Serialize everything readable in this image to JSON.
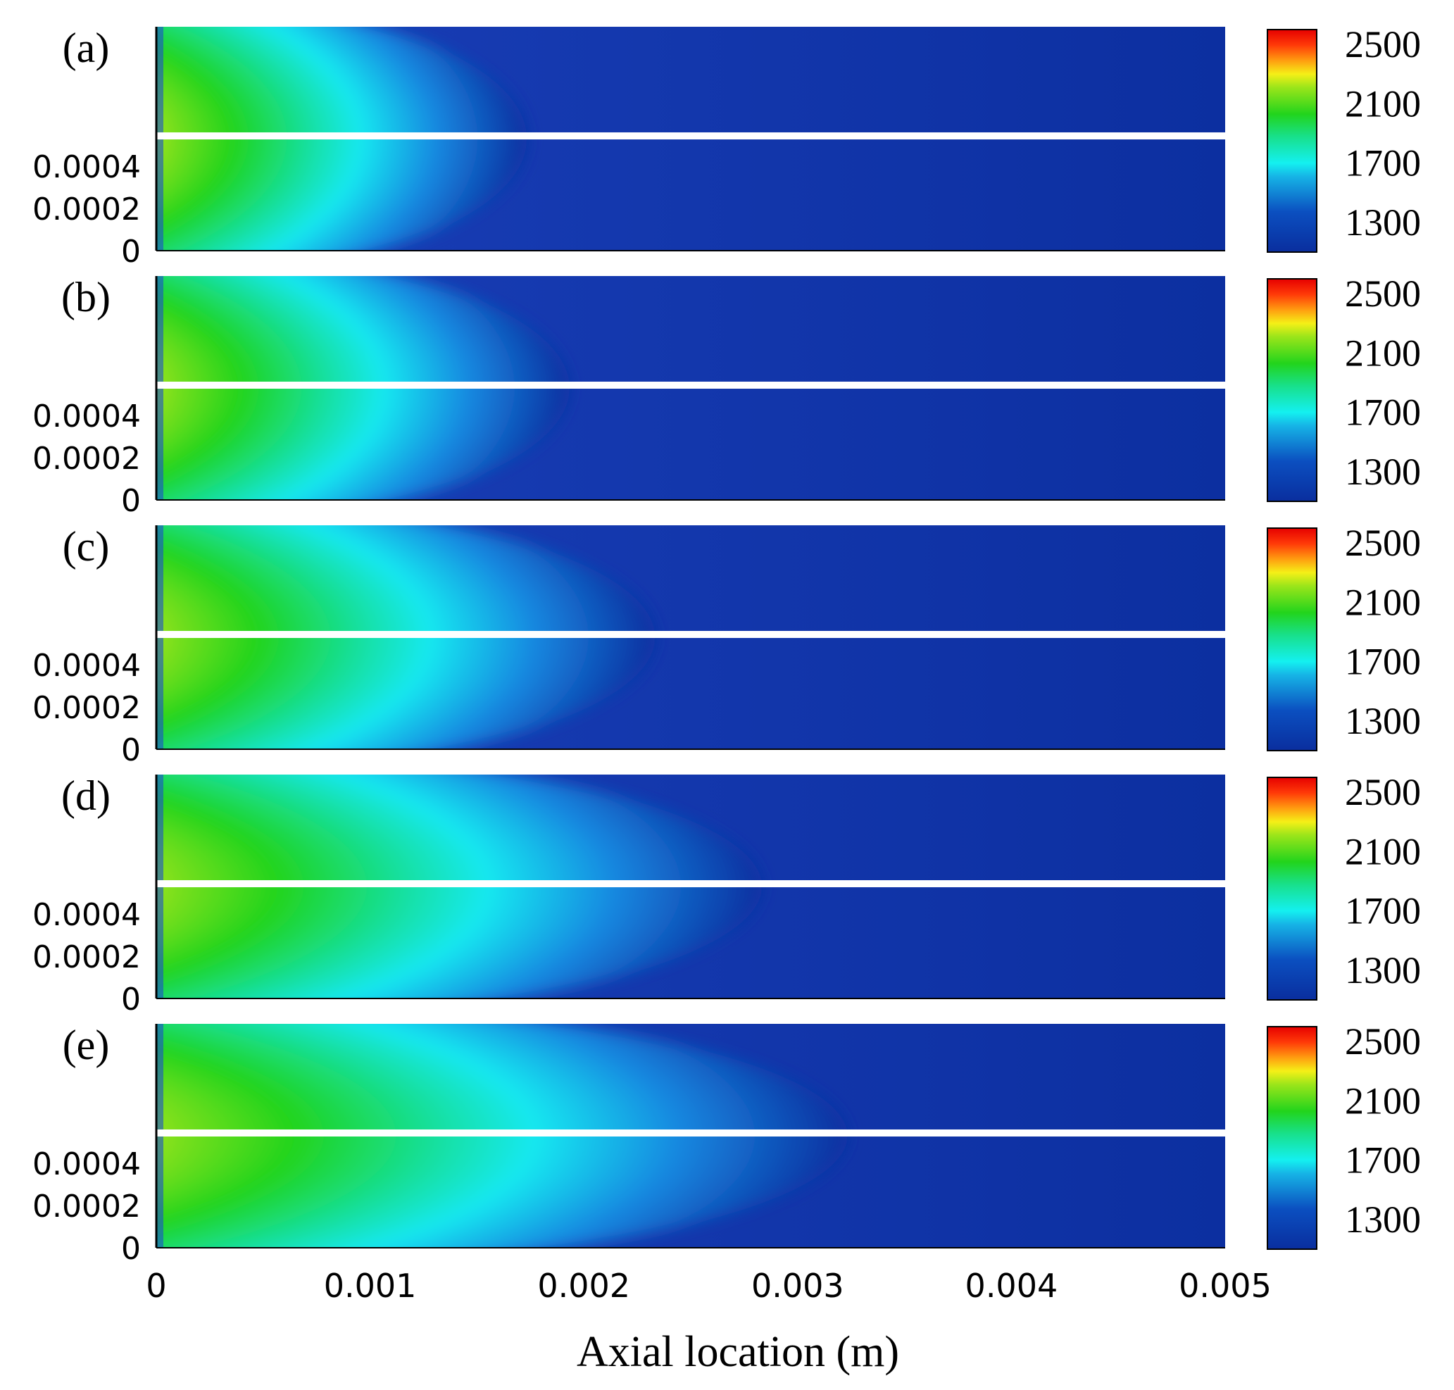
{
  "chart_data": {
    "type": "heatmap",
    "colormap": "rainbow (blue-cyan-green-yellow-red)",
    "xlabel": "Axial location (m)",
    "x_ticks": [
      "0",
      "0.001",
      "0.002",
      "0.003",
      "0.004",
      "0.005"
    ],
    "x_tick_values": [
      0,
      0.001,
      0.002,
      0.003,
      0.004,
      0.005
    ],
    "xlim": [
      0,
      0.005
    ],
    "y_ticks": [
      "0.0004",
      "0.0002",
      "0"
    ],
    "y_tick_values": [
      0.0004,
      0.0002,
      0
    ],
    "colorbar_ticks": [
      "2500",
      "2100",
      "1700",
      "1300"
    ],
    "colorbar_tick_values": [
      2500,
      2100,
      1700,
      1300
    ],
    "colorbar_range": [
      1100,
      2600
    ],
    "panels": [
      {
        "label": "(a)",
        "hot_zone_extent_m": 0.0017
      },
      {
        "label": "(b)",
        "hot_zone_extent_m": 0.0019
      },
      {
        "label": "(c)",
        "hot_zone_extent_m": 0.0023
      },
      {
        "label": "(d)",
        "hot_zone_extent_m": 0.0028
      },
      {
        "label": "(e)",
        "hot_zone_extent_m": 0.0032
      }
    ]
  }
}
